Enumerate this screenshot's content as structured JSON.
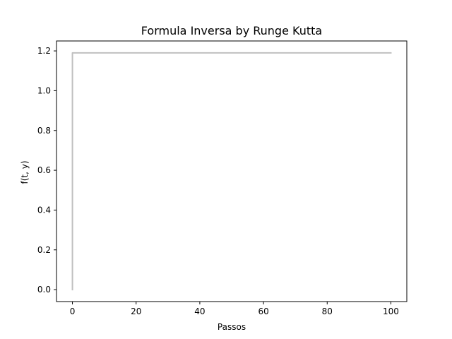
{
  "chart_data": {
    "type": "line",
    "title": "Formula Inversa by Runge Kutta",
    "xlabel": "Passos",
    "ylabel": "f(t, y)",
    "xlim": [
      -5,
      105
    ],
    "ylim": [
      -0.06,
      1.25
    ],
    "xticks": [
      0,
      20,
      40,
      60,
      80,
      100
    ],
    "xtick_labels": [
      "0",
      "20",
      "40",
      "60",
      "80",
      "100"
    ],
    "yticks": [
      0.0,
      0.2,
      0.4,
      0.6,
      0.8,
      1.0,
      1.2
    ],
    "ytick_labels": [
      "0.0",
      "0.2",
      "0.4",
      "0.6",
      "0.8",
      "1.0",
      "1.2"
    ],
    "grid": false,
    "series": [
      {
        "color": "#c0c0c0",
        "x": [
          0,
          0,
          1,
          2,
          5,
          10,
          20,
          30,
          40,
          50,
          60,
          70,
          80,
          90,
          100
        ],
        "y": [
          0.0,
          1.19,
          1.19,
          1.19,
          1.19,
          1.19,
          1.19,
          1.19,
          1.19,
          1.19,
          1.19,
          1.19,
          1.19,
          1.19,
          1.19
        ]
      }
    ]
  }
}
